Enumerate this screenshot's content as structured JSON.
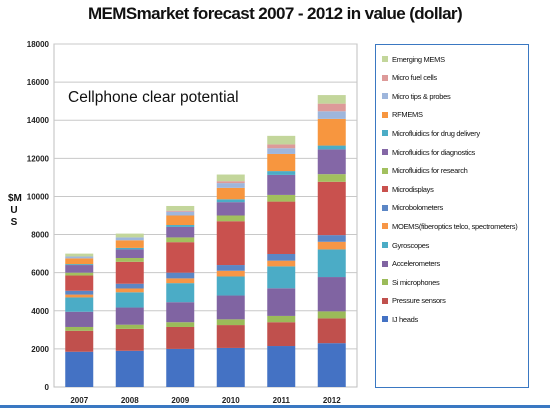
{
  "chart_data": {
    "type": "bar",
    "stacked": true,
    "title": "MEMSmarket forecast 2007 - 2012 in value (dollar)",
    "ylabel": "$MUS",
    "annotation": "Cellphone clear potential",
    "categories": [
      "2007",
      "2008",
      "2009",
      "2010",
      "2011",
      "2012"
    ],
    "ylim": [
      0,
      18000
    ],
    "yticks": [
      0,
      2000,
      4000,
      6000,
      8000,
      10000,
      12000,
      14000,
      16000,
      18000
    ],
    "grid": true,
    "legend_position": "right",
    "series": [
      {
        "name": "IJ heads",
        "color": "#4472c4",
        "values": [
          1850,
          1900,
          2000,
          2050,
          2150,
          2300
        ]
      },
      {
        "name": "Pressure sensors",
        "color": "#c0504d",
        "values": [
          1100,
          1150,
          1150,
          1200,
          1250,
          1300
        ]
      },
      {
        "name": "Si microphones",
        "color": "#9bbb59",
        "values": [
          200,
          220,
          250,
          300,
          330,
          370
        ]
      },
      {
        "name": "Accelerometers",
        "color": "#8064a2",
        "values": [
          800,
          900,
          1050,
          1250,
          1450,
          1800
        ]
      },
      {
        "name": "Gyroscopes",
        "color": "#4bacc6",
        "values": [
          750,
          800,
          1000,
          1000,
          1150,
          1450
        ]
      },
      {
        "name": "MOEMS(fiberoptics telco, spectrometers)",
        "color": "#f79646",
        "values": [
          150,
          200,
          250,
          300,
          300,
          400
        ]
      },
      {
        "name": "Microbolometers",
        "color": "#5b86c5",
        "values": [
          200,
          250,
          300,
          300,
          350,
          350
        ]
      },
      {
        "name": "Microdisplays",
        "color": "#c9514e",
        "values": [
          800,
          1150,
          1600,
          2300,
          2750,
          2800
        ]
      },
      {
        "name": "Microfluidics for research",
        "color": "#a2c05e",
        "values": [
          150,
          200,
          250,
          300,
          350,
          400
        ]
      },
      {
        "name": "Microfluidics for diagnostics",
        "color": "#8467a6",
        "values": [
          400,
          450,
          550,
          700,
          1050,
          1300
        ]
      },
      {
        "name": "Microfluidics for drug delivery",
        "color": "#4bacc6",
        "values": [
          50,
          80,
          100,
          150,
          200,
          200
        ]
      },
      {
        "name": "RFMEMS",
        "color": "#f7963f",
        "values": [
          300,
          400,
          500,
          600,
          900,
          1400
        ]
      },
      {
        "name": "Micro tips & probes",
        "color": "#9eb6dc",
        "values": [
          100,
          150,
          200,
          250,
          300,
          400
        ]
      },
      {
        "name": "Micro fuel cells",
        "color": "#dd9a99",
        "values": [
          0,
          0,
          50,
          100,
          200,
          400
        ]
      },
      {
        "name": "Emerging MEMS",
        "color": "#c3d69b",
        "values": [
          150,
          200,
          250,
          350,
          450,
          450
        ]
      }
    ]
  }
}
